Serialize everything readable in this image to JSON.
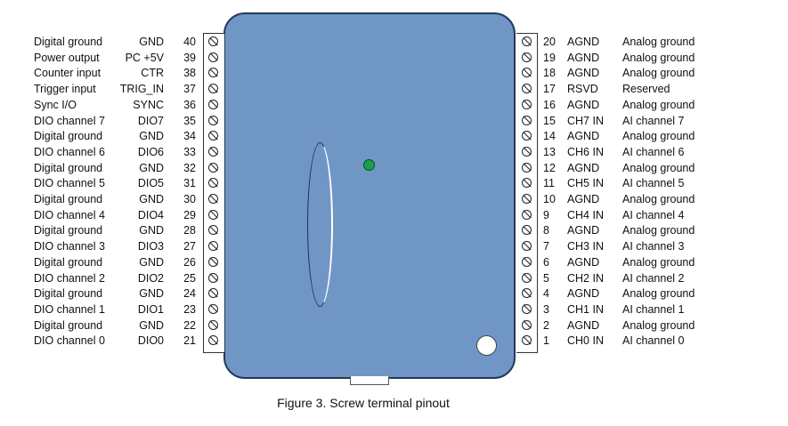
{
  "caption": "Figure 3. Screw terminal pinout",
  "colors": {
    "board": "#7096c6",
    "led": "#19a04a"
  },
  "left_pins": [
    {
      "desc": "Digital ground",
      "signal": "GND",
      "pin": "40"
    },
    {
      "desc": "Power output",
      "signal": "PC +5V",
      "pin": "39"
    },
    {
      "desc": "Counter input",
      "signal": "CTR",
      "pin": "38"
    },
    {
      "desc": "Trigger input",
      "signal": "TRIG_IN",
      "pin": "37"
    },
    {
      "desc": "Sync I/O",
      "signal": "SYNC",
      "pin": "36"
    },
    {
      "desc": "DIO channel 7",
      "signal": "DIO7",
      "pin": "35"
    },
    {
      "desc": "Digital ground",
      "signal": "GND",
      "pin": "34"
    },
    {
      "desc": "DIO channel 6",
      "signal": "DIO6",
      "pin": "33"
    },
    {
      "desc": "Digital ground",
      "signal": "GND",
      "pin": "32"
    },
    {
      "desc": "DIO channel 5",
      "signal": "DIO5",
      "pin": "31"
    },
    {
      "desc": "Digital ground",
      "signal": "GND",
      "pin": "30"
    },
    {
      "desc": "DIO channel 4",
      "signal": "DIO4",
      "pin": "29"
    },
    {
      "desc": "Digital ground",
      "signal": "GND",
      "pin": "28"
    },
    {
      "desc": "DIO channel 3",
      "signal": "DIO3",
      "pin": "27"
    },
    {
      "desc": "Digital ground",
      "signal": "GND",
      "pin": "26"
    },
    {
      "desc": "DIO channel 2",
      "signal": "DIO2",
      "pin": "25"
    },
    {
      "desc": "Digital ground",
      "signal": "GND",
      "pin": "24"
    },
    {
      "desc": "DIO channel 1",
      "signal": "DIO1",
      "pin": "23"
    },
    {
      "desc": "Digital ground",
      "signal": "GND",
      "pin": "22"
    },
    {
      "desc": "DIO channel 0",
      "signal": "DIO0",
      "pin": "21"
    }
  ],
  "right_pins": [
    {
      "pin": "20",
      "signal": "AGND",
      "desc": "Analog ground"
    },
    {
      "pin": "19",
      "signal": "AGND",
      "desc": "Analog ground"
    },
    {
      "pin": "18",
      "signal": "AGND",
      "desc": "Analog ground"
    },
    {
      "pin": "17",
      "signal": "RSVD",
      "desc": "Reserved"
    },
    {
      "pin": "16",
      "signal": "AGND",
      "desc": "Analog ground"
    },
    {
      "pin": "15",
      "signal": "CH7 IN",
      "desc": "AI channel 7"
    },
    {
      "pin": "14",
      "signal": "AGND",
      "desc": "Analog ground"
    },
    {
      "pin": "13",
      "signal": "CH6 IN",
      "desc": "AI channel 6"
    },
    {
      "pin": "12",
      "signal": "AGND",
      "desc": "Analog ground"
    },
    {
      "pin": "11",
      "signal": "CH5 IN",
      "desc": "AI channel 5"
    },
    {
      "pin": "10",
      "signal": "AGND",
      "desc": "Analog ground"
    },
    {
      "pin": "9",
      "signal": "CH4 IN",
      "desc": "AI channel 4"
    },
    {
      "pin": "8",
      "signal": "AGND",
      "desc": "Analog ground"
    },
    {
      "pin": "7",
      "signal": "CH3 IN",
      "desc": "AI channel 3"
    },
    {
      "pin": "6",
      "signal": "AGND",
      "desc": "Analog ground"
    },
    {
      "pin": "5",
      "signal": "CH2 IN",
      "desc": "AI channel 2"
    },
    {
      "pin": "4",
      "signal": "AGND",
      "desc": "Analog ground"
    },
    {
      "pin": "3",
      "signal": "CH1 IN",
      "desc": "AI channel 1"
    },
    {
      "pin": "2",
      "signal": "AGND",
      "desc": "Analog ground"
    },
    {
      "pin": "1",
      "signal": "CH0 IN",
      "desc": "AI channel 0"
    }
  ]
}
